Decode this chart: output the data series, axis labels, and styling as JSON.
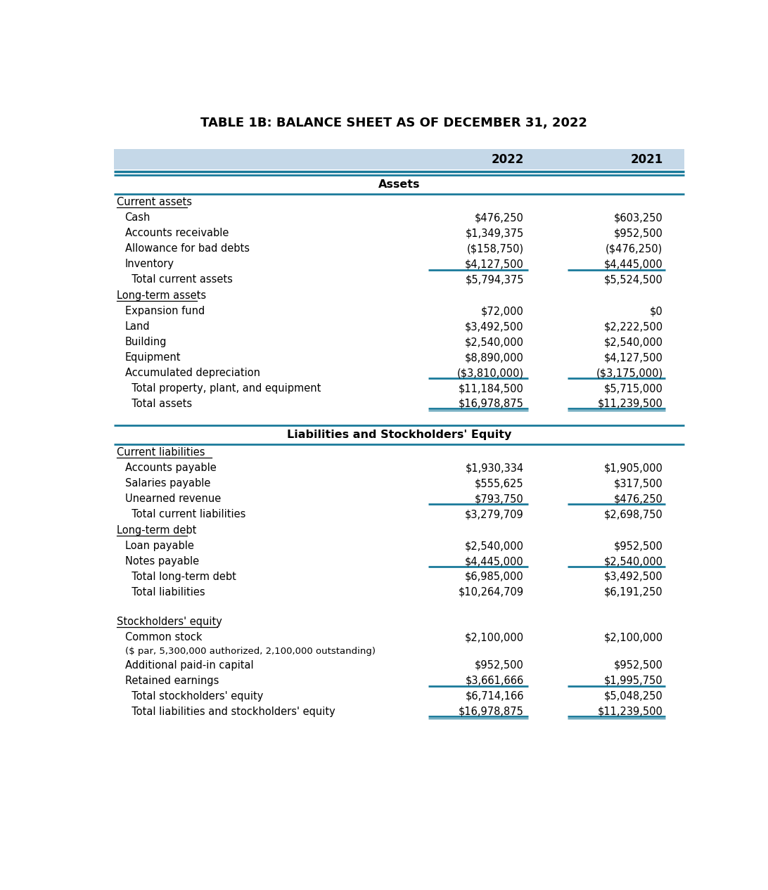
{
  "title": "TABLE 1B: BALANCE SHEET AS OF DECEMBER 31, 2022",
  "header_bg": "#c5d8e8",
  "teal": "#1a7a9a",
  "col_2022": "2022",
  "col_2021": "2021",
  "rows": [
    {
      "label": "Assets",
      "val2022": "",
      "val2021": "",
      "style": "section_center",
      "line_above": true
    },
    {
      "label": "Current assets",
      "val2022": "",
      "val2021": "",
      "style": "category",
      "line_above": true
    },
    {
      "label": "Cash",
      "val2022": "$476,250",
      "val2021": "$603,250",
      "style": "normal"
    },
    {
      "label": "Accounts receivable",
      "val2022": "$1,349,375",
      "val2021": "$952,500",
      "style": "normal"
    },
    {
      "label": "Allowance for bad debts",
      "val2022": "($158,750)",
      "val2021": "($476,250)",
      "style": "normal"
    },
    {
      "label": "Inventory",
      "val2022": "$4,127,500",
      "val2021": "$4,445,000",
      "style": "normal",
      "line_below_cols": true
    },
    {
      "label": "  Total current assets",
      "val2022": "$5,794,375",
      "val2021": "$5,524,500",
      "style": "total"
    },
    {
      "label": "Long-term assets",
      "val2022": "",
      "val2021": "",
      "style": "category"
    },
    {
      "label": "Expansion fund",
      "val2022": "$72,000",
      "val2021": "$0",
      "style": "normal"
    },
    {
      "label": "Land",
      "val2022": "$3,492,500",
      "val2021": "$2,222,500",
      "style": "normal"
    },
    {
      "label": "Building",
      "val2022": "$2,540,000",
      "val2021": "$2,540,000",
      "style": "normal"
    },
    {
      "label": "Equipment",
      "val2022": "$8,890,000",
      "val2021": "$4,127,500",
      "style": "normal"
    },
    {
      "label": "Accumulated depreciation",
      "val2022": "($3,810,000)",
      "val2021": "($3,175,000)",
      "style": "normal",
      "line_below_cols": true
    },
    {
      "label": "  Total property, plant, and equipment",
      "val2022": "$11,184,500",
      "val2021": "$5,715,000",
      "style": "total"
    },
    {
      "label": "  Total assets",
      "val2022": "$16,978,875",
      "val2021": "$11,239,500",
      "style": "total",
      "double_line": true
    },
    {
      "label": "",
      "val2022": "",
      "val2021": "",
      "style": "spacer"
    },
    {
      "label": "Liabilities and Stockholders' Equity",
      "val2022": "",
      "val2021": "",
      "style": "section_center",
      "line_above": true
    },
    {
      "label": "Current liabilities",
      "val2022": "",
      "val2021": "",
      "style": "category",
      "line_above": true
    },
    {
      "label": "Accounts payable",
      "val2022": "$1,930,334",
      "val2021": "$1,905,000",
      "style": "normal"
    },
    {
      "label": "Salaries payable",
      "val2022": "$555,625",
      "val2021": "$317,500",
      "style": "normal"
    },
    {
      "label": "Unearned revenue",
      "val2022": "$793,750",
      "val2021": "$476,250",
      "style": "normal",
      "line_below_cols": true
    },
    {
      "label": "  Total current liabilities",
      "val2022": "$3,279,709",
      "val2021": "$2,698,750",
      "style": "total"
    },
    {
      "label": "Long-term debt",
      "val2022": "",
      "val2021": "",
      "style": "category"
    },
    {
      "label": "Loan payable",
      "val2022": "$2,540,000",
      "val2021": "$952,500",
      "style": "normal"
    },
    {
      "label": "Notes payable",
      "val2022": "$4,445,000",
      "val2021": "$2,540,000",
      "style": "normal",
      "line_below_cols": true
    },
    {
      "label": "  Total long-term debt",
      "val2022": "$6,985,000",
      "val2021": "$3,492,500",
      "style": "total"
    },
    {
      "label": "  Total liabilities",
      "val2022": "$10,264,709",
      "val2021": "$6,191,250",
      "style": "total"
    },
    {
      "label": "",
      "val2022": "",
      "val2021": "",
      "style": "spacer"
    },
    {
      "label": "Stockholders' equity",
      "val2022": "",
      "val2021": "",
      "style": "category"
    },
    {
      "label": "Common stock",
      "val2022": "$2,100,000",
      "val2021": "$2,100,000",
      "style": "normal"
    },
    {
      "label": "($ par, 5,300,000 authorized, 2,100,000 outstanding)",
      "val2022": "",
      "val2021": "",
      "style": "subtext"
    },
    {
      "label": "Additional paid-in capital",
      "val2022": "$952,500",
      "val2021": "$952,500",
      "style": "normal"
    },
    {
      "label": "Retained earnings",
      "val2022": "$3,661,666",
      "val2021": "$1,995,750",
      "style": "normal",
      "line_below_cols": true
    },
    {
      "label": "  Total stockholders' equity",
      "val2022": "$6,714,166",
      "val2021": "$5,048,250",
      "style": "total"
    },
    {
      "label": "  Total liabilities and stockholders' equity",
      "val2022": "$16,978,875",
      "val2021": "$11,239,500",
      "style": "total",
      "double_line": true
    }
  ]
}
